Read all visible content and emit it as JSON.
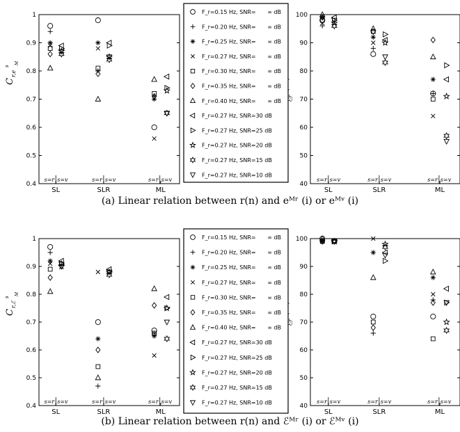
{
  "captions": {
    "a": "(a) Linear relation between r(n) and eᴹʳ (i) or eᴹᵛ (i)",
    "b": "(b) Linear relation between r(n) and ℰᴹʳ (i) or ℰᴹᵛ (i)"
  },
  "legend_a": [
    {
      "marker": "circle",
      "label": "F_r=0.15 Hz, SNR=",
      "snr": "∞ dB"
    },
    {
      "marker": "plus",
      "label": "F_r=0.20 Hz, SNR=",
      "snr": "∞ dB"
    },
    {
      "marker": "asterisk",
      "label": "F_r=0.25 Hz, SNR=",
      "snr": "∞ dB"
    },
    {
      "marker": "x",
      "label": "F_r=0.27 Hz, SNR=",
      "snr": "∞ dB"
    },
    {
      "marker": "square",
      "label": "F_r=0.30 Hz, SNR=",
      "snr": "∞ dB"
    },
    {
      "marker": "diamond",
      "label": "F_r=0.35 Hz, SNR=",
      "snr": "∞ dB"
    },
    {
      "marker": "triangle-up",
      "label": "F_r=0.40 Hz, SNR=",
      "snr": "∞ dB"
    },
    {
      "marker": "triangle-left",
      "label": "F_r=0.27 Hz, SNR=30 dB",
      "snr": ""
    },
    {
      "marker": "triangle-right",
      "label": "F_r=0.27 Hz, SNR=25 dB",
      "snr": ""
    },
    {
      "marker": "pentagram",
      "label": "F_r=0.27 Hz, SNR=20 dB",
      "snr": ""
    },
    {
      "marker": "hexagram",
      "label": "F_r=0.27 Hz, SNR=15 dB",
      "snr": ""
    },
    {
      "marker": "triangle-down",
      "label": "F_r=0.27 Hz, SNR=10 dB",
      "snr": ""
    }
  ],
  "legend_b": [
    {
      "marker": "circle",
      "label": "F_r=0.15 Hz, SNR=",
      "snr": "∞ dB"
    },
    {
      "marker": "plus",
      "label": "F_r=0.20 Hz, SNR=",
      "snr": "∞ dB"
    },
    {
      "marker": "asterisk",
      "label": "F_r=0.25 Hz, SNR=",
      "snr": "∞ dB"
    },
    {
      "marker": "x",
      "label": "F_r=0.27 Hz, SNR=",
      "snr": "∞ dB"
    },
    {
      "marker": "square",
      "label": "F_r=0.30 Hz, SNR=",
      "snr": "∞ dB"
    },
    {
      "marker": "diamond",
      "label": "F_r=0.35 Hz, SNR=",
      "snr": "∞ dB"
    },
    {
      "marker": "triangle-up",
      "label": "F_r=0.40 Hz, SNR=",
      "snr": "∞ dB"
    },
    {
      "marker": "triangle-left",
      "label": "F_r=0.27 Hz, SNR=30 dB",
      "snr": ""
    },
    {
      "marker": "triangle-right",
      "label": "F_r=0.27 Hz, SNR=25 dB",
      "snr": ""
    },
    {
      "marker": "pentagram",
      "label": "F_r=0.27 Hz, SNR=20 dB",
      "snr": ""
    },
    {
      "marker": "hexagram",
      "label": "F_r=0.27 Hz, SNR=15 dB",
      "snr": ""
    },
    {
      "marker": "triangle-down",
      "label": "F_r=0.27 Hz, SNR=10 dB",
      "snr": ""
    }
  ],
  "chart_data": [
    {
      "id": "a-left",
      "type": "scatter",
      "ylabel": "C r,e M s",
      "ylim": [
        0.4,
        1.0
      ],
      "yticks": [
        "0.4",
        "0.5",
        "0.6",
        "0.7",
        "0.8",
        "0.9",
        "1"
      ],
      "categories": [
        "SL",
        "SLR",
        "ML"
      ],
      "sub_labels": [
        "s=r",
        "s=v"
      ],
      "series": [
        {
          "marker": "circle",
          "points": [
            [
              0,
              0.96
            ],
            [
              1,
              0.98
            ],
            [
              2,
              0.6
            ]
          ]
        },
        {
          "marker": "plus",
          "points": [
            [
              0,
              0.94
            ],
            [
              1,
              0.8
            ],
            [
              2,
              0.71
            ]
          ]
        },
        {
          "marker": "asterisk",
          "points": [
            [
              0,
              0.9
            ],
            [
              1,
              0.9
            ],
            [
              2,
              0.7
            ]
          ]
        },
        {
          "marker": "x",
          "points": [
            [
              0,
              0.89
            ],
            [
              1,
              0.88
            ],
            [
              2,
              0.56
            ]
          ]
        },
        {
          "marker": "square",
          "points": [
            [
              0,
              0.88
            ],
            [
              1,
              0.81
            ],
            [
              2,
              0.72
            ]
          ]
        },
        {
          "marker": "diamond",
          "points": [
            [
              0,
              0.86
            ],
            [
              1,
              0.79
            ],
            [
              2,
              0.71
            ]
          ]
        },
        {
          "marker": "triangle-up",
          "points": [
            [
              0,
              0.81
            ],
            [
              1,
              0.7
            ],
            [
              2,
              0.77
            ]
          ]
        },
        {
          "marker": "triangle-left",
          "points": [
            [
              3,
              0.89
            ],
            [
              4,
              0.9
            ],
            [
              5,
              0.78
            ]
          ]
        },
        {
          "marker": "triangle-right",
          "points": [
            [
              3,
              0.88
            ],
            [
              4,
              0.89
            ],
            [
              5,
              0.74
            ]
          ]
        },
        {
          "marker": "pentagram",
          "points": [
            [
              3,
              0.87
            ],
            [
              4,
              0.85
            ],
            [
              5,
              0.73
            ]
          ]
        },
        {
          "marker": "hexagram",
          "points": [
            [
              3,
              0.86
            ],
            [
              4,
              0.84
            ],
            [
              5,
              0.65
            ]
          ]
        },
        {
          "marker": "triangle-down",
          "points": [
            [
              3,
              0.87
            ],
            [
              4,
              0.85
            ],
            [
              5,
              0.65
            ]
          ]
        }
      ]
    },
    {
      "id": "a-right",
      "type": "scatter",
      "ylabel": "R s ξ|r (%)",
      "ylim": [
        40,
        100
      ],
      "yticks": [
        "40",
        "50",
        "60",
        "70",
        "80",
        "90",
        "100"
      ],
      "categories": [
        "SL",
        "SLR",
        "ML"
      ],
      "sub_labels": [
        "s=r",
        "s=v"
      ],
      "series": [
        {
          "marker": "circle",
          "points": [
            [
              0,
              98
            ],
            [
              1,
              86
            ],
            [
              2,
              72
            ]
          ]
        },
        {
          "marker": "plus",
          "points": [
            [
              0,
              96
            ],
            [
              1,
              88
            ],
            [
              2,
              72
            ]
          ]
        },
        {
          "marker": "asterisk",
          "points": [
            [
              0,
              99
            ],
            [
              1,
              92
            ],
            [
              2,
              77
            ]
          ]
        },
        {
          "marker": "x",
          "points": [
            [
              0,
              97
            ],
            [
              1,
              90
            ],
            [
              2,
              64
            ]
          ]
        },
        {
          "marker": "square",
          "points": [
            [
              0,
              98
            ],
            [
              1,
              94
            ],
            [
              2,
              70
            ]
          ]
        },
        {
          "marker": "diamond",
          "points": [
            [
              0,
              99
            ],
            [
              1,
              94
            ],
            [
              2,
              91
            ]
          ]
        },
        {
          "marker": "triangle-up",
          "points": [
            [
              0,
              100
            ],
            [
              1,
              95
            ],
            [
              2,
              85
            ]
          ]
        },
        {
          "marker": "triangle-left",
          "points": [
            [
              3,
              99
            ],
            [
              4,
              91
            ],
            [
              5,
              77
            ]
          ]
        },
        {
          "marker": "triangle-right",
          "points": [
            [
              3,
              98
            ],
            [
              4,
              93
            ],
            [
              5,
              82
            ]
          ]
        },
        {
          "marker": "pentagram",
          "points": [
            [
              3,
              97
            ],
            [
              4,
              90
            ],
            [
              5,
              71
            ]
          ]
        },
        {
          "marker": "hexagram",
          "points": [
            [
              3,
              96
            ],
            [
              4,
              83
            ],
            [
              5,
              57
            ]
          ]
        },
        {
          "marker": "triangle-down",
          "points": [
            [
              3,
              98
            ],
            [
              4,
              85
            ],
            [
              5,
              55
            ]
          ]
        }
      ]
    },
    {
      "id": "b-left",
      "type": "scatter",
      "ylabel": "C r,ℰ M s",
      "ylim": [
        0.4,
        1.0
      ],
      "yticks": [
        "0.4",
        "0.5",
        "0.6",
        "0.7",
        "0.8",
        "0.9",
        "1"
      ],
      "categories": [
        "SL",
        "SLR",
        "ML"
      ],
      "sub_labels": [
        "s=r",
        "s=v"
      ],
      "series": [
        {
          "marker": "circle",
          "points": [
            [
              0,
              0.97
            ],
            [
              1,
              0.7
            ],
            [
              2,
              0.67
            ]
          ]
        },
        {
          "marker": "plus",
          "points": [
            [
              0,
              0.95
            ],
            [
              1,
              0.47
            ],
            [
              2,
              0.66
            ]
          ]
        },
        {
          "marker": "asterisk",
          "points": [
            [
              0,
              0.92
            ],
            [
              1,
              0.64
            ],
            [
              2,
              0.65
            ]
          ]
        },
        {
          "marker": "x",
          "points": [
            [
              0,
              0.91
            ],
            [
              1,
              0.88
            ],
            [
              2,
              0.58
            ]
          ]
        },
        {
          "marker": "square",
          "points": [
            [
              0,
              0.89
            ],
            [
              1,
              0.54
            ],
            [
              2,
              0.66
            ]
          ]
        },
        {
          "marker": "diamond",
          "points": [
            [
              0,
              0.86
            ],
            [
              1,
              0.6
            ],
            [
              2,
              0.76
            ]
          ]
        },
        {
          "marker": "triangle-up",
          "points": [
            [
              0,
              0.81
            ],
            [
              1,
              0.5
            ],
            [
              2,
              0.82
            ]
          ]
        },
        {
          "marker": "triangle-left",
          "points": [
            [
              3,
              0.92
            ],
            [
              4,
              0.89
            ],
            [
              5,
              0.79
            ]
          ]
        },
        {
          "marker": "triangle-right",
          "points": [
            [
              3,
              0.91
            ],
            [
              4,
              0.88
            ],
            [
              5,
              0.75
            ]
          ]
        },
        {
          "marker": "pentagram",
          "points": [
            [
              3,
              0.9
            ],
            [
              4,
              0.88
            ],
            [
              5,
              0.75
            ]
          ]
        },
        {
          "marker": "hexagram",
          "points": [
            [
              3,
              0.91
            ],
            [
              4,
              0.87
            ],
            [
              5,
              0.64
            ]
          ]
        },
        {
          "marker": "triangle-down",
          "points": [
            [
              3,
              0.9
            ],
            [
              4,
              0.88
            ],
            [
              5,
              0.7
            ]
          ]
        }
      ]
    },
    {
      "id": "b-right",
      "type": "scatter",
      "ylabel": "R s ξ|r (%)",
      "ylim": [
        40,
        100
      ],
      "yticks": [
        "40",
        "50",
        "60",
        "70",
        "80",
        "90",
        "100"
      ],
      "categories": [
        "SL",
        "SLR",
        "ML"
      ],
      "sub_labels": [
        "s=r",
        "s=v"
      ],
      "series": [
        {
          "marker": "circle",
          "points": [
            [
              0,
              100
            ],
            [
              1,
              72
            ],
            [
              2,
              72
            ]
          ]
        },
        {
          "marker": "plus",
          "points": [
            [
              0,
              99
            ],
            [
              1,
              66
            ],
            [
              2,
              78
            ]
          ]
        },
        {
          "marker": "asterisk",
          "points": [
            [
              0,
              99
            ],
            [
              1,
              95
            ],
            [
              2,
              86
            ]
          ]
        },
        {
          "marker": "x",
          "points": [
            [
              0,
              99
            ],
            [
              1,
              100
            ],
            [
              2,
              80
            ]
          ]
        },
        {
          "marker": "square",
          "points": [
            [
              0,
              99
            ],
            [
              1,
              70
            ],
            [
              2,
              64
            ]
          ]
        },
        {
          "marker": "diamond",
          "points": [
            [
              0,
              99
            ],
            [
              1,
              68
            ],
            [
              2,
              77
            ]
          ]
        },
        {
          "marker": "triangle-up",
          "points": [
            [
              0,
              100
            ],
            [
              1,
              86
            ],
            [
              2,
              88
            ]
          ]
        },
        {
          "marker": "triangle-left",
          "points": [
            [
              3,
              99
            ],
            [
              4,
              95
            ],
            [
              5,
              82
            ]
          ]
        },
        {
          "marker": "triangle-right",
          "points": [
            [
              3,
              99
            ],
            [
              4,
              92
            ],
            [
              5,
              77
            ]
          ]
        },
        {
          "marker": "pentagram",
          "points": [
            [
              3,
              99
            ],
            [
              4,
              98
            ],
            [
              5,
              70
            ]
          ]
        },
        {
          "marker": "hexagram",
          "points": [
            [
              3,
              99
            ],
            [
              4,
              97
            ],
            [
              5,
              67
            ]
          ]
        },
        {
          "marker": "triangle-down",
          "points": [
            [
              3,
              99
            ],
            [
              4,
              94
            ],
            [
              5,
              77
            ]
          ]
        }
      ]
    }
  ]
}
